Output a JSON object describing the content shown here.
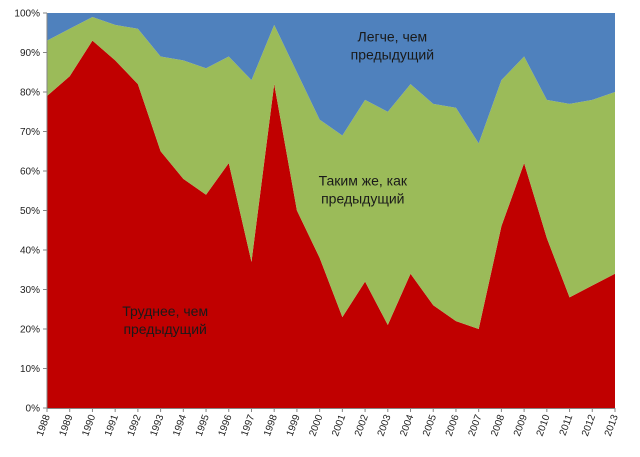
{
  "chart_data": {
    "type": "area",
    "stacked": true,
    "percent": true,
    "x": [
      "1988",
      "1989",
      "1990",
      "1991",
      "1992",
      "1993",
      "1994",
      "1995",
      "1996",
      "1997",
      "1998",
      "1999",
      "2000",
      "2001",
      "2002",
      "2003",
      "2004",
      "2005",
      "2006",
      "2007",
      "2008",
      "2009",
      "2010",
      "2011",
      "2012",
      "2013"
    ],
    "series": [
      {
        "name": "Труднее, чем предыдущий",
        "color": "#c00000",
        "values": [
          79,
          84,
          93,
          88,
          82,
          65,
          58,
          54,
          62,
          37,
          82,
          50,
          38,
          23,
          32,
          21,
          34,
          26,
          22,
          20,
          46,
          62,
          43,
          28,
          31,
          34
        ]
      },
      {
        "name": "Таким же, как предыдущий",
        "color": "#9bbb59",
        "values": [
          14,
          12,
          6,
          9,
          14,
          24,
          30,
          32,
          27,
          46,
          15,
          35,
          35,
          46,
          46,
          54,
          48,
          51,
          54,
          47,
          37,
          27,
          35,
          49,
          47,
          46
        ]
      },
      {
        "name": "Легче, чем предыдущий",
        "color": "#4f81bd",
        "values": [
          7,
          4,
          1,
          3,
          4,
          11,
          12,
          14,
          11,
          17,
          3,
          15,
          27,
          31,
          22,
          25,
          18,
          23,
          24,
          33,
          17,
          11,
          22,
          23,
          22,
          20
        ]
      }
    ],
    "y_ticks": [
      "0%",
      "10%",
      "20%",
      "30%",
      "40%",
      "50%",
      "60%",
      "70%",
      "80%",
      "90%",
      "100%"
    ],
    "ylim": [
      0,
      100
    ],
    "labels": [
      {
        "series": 0,
        "lines": [
          "Труднее, чем",
          "предыдущий"
        ]
      },
      {
        "series": 1,
        "lines": [
          "Таким  же, как",
          "предыдущий"
        ]
      },
      {
        "series": 2,
        "lines": [
          "Легче, чем",
          "предыдущий"
        ]
      }
    ]
  }
}
